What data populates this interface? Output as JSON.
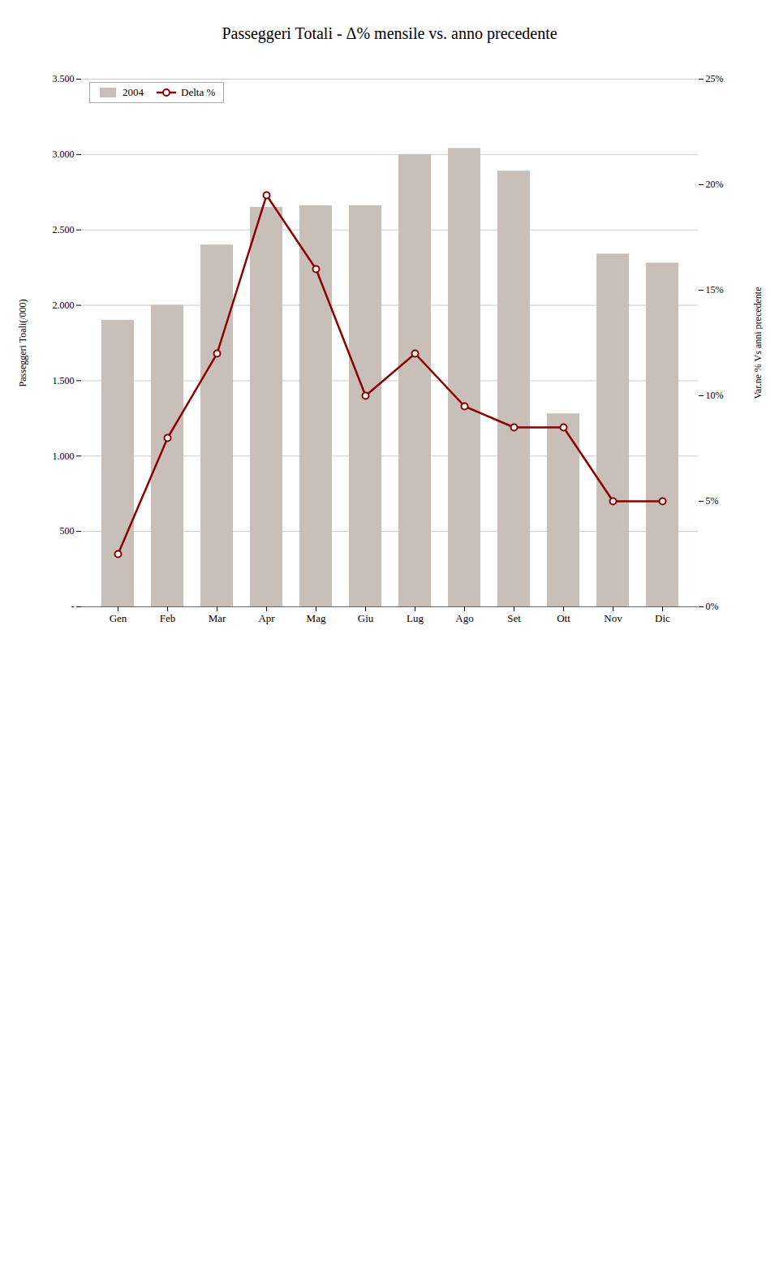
{
  "chart_data": {
    "type": "bar",
    "title": "Passeggeri Totali - Δ% mensile vs. anno precedente",
    "categories": [
      "Gen",
      "Feb",
      "Mar",
      "Apr",
      "Mag",
      "Giu",
      "Lug",
      "Ago",
      "Set",
      "Ott",
      "Nov",
      "Dic"
    ],
    "series": [
      {
        "name": "2004",
        "type": "bar",
        "color": "#c8c0b8",
        "values": [
          1900,
          2000,
          2400,
          2650,
          2660,
          2660,
          3000,
          3040,
          2890,
          1280,
          2340,
          2280
        ]
      },
      {
        "name": "Delta %",
        "type": "line",
        "axis": "y2",
        "color": "#8b0000",
        "marker": "circle",
        "line_style": "solid",
        "values": [
          2.5,
          8.0,
          12.0,
          19.5,
          16.0,
          10.0,
          12.0,
          9.5,
          8.5,
          8.5,
          5.0,
          5.0
        ]
      }
    ],
    "ylabel": "Passeggeri Toali(/000)",
    "y2label": "Var.ne % Vs anni precedente",
    "ylim": [
      0,
      3500
    ],
    "yticks": [
      {
        "value": 0,
        "label": "-"
      },
      500,
      {
        "value": 1000,
        "label": "1.000"
      },
      {
        "value": 1500,
        "label": "1.500"
      },
      {
        "value": 2000,
        "label": "2.000"
      },
      {
        "value": 2500,
        "label": "2.500"
      },
      {
        "value": 3000,
        "label": "3.000"
      },
      {
        "value": 3500,
        "label": "3.500"
      }
    ],
    "y2lim": [
      0,
      25
    ],
    "y2ticks": [
      {
        "value": 0,
        "label": "0%"
      },
      {
        "value": 5,
        "label": "5%"
      },
      {
        "value": 10,
        "label": "10%"
      },
      {
        "value": 15,
        "label": "15%"
      },
      {
        "value": 20,
        "label": "20%"
      },
      {
        "value": 25,
        "label": "25%"
      }
    ],
    "grid": true,
    "legend": "upper left"
  }
}
